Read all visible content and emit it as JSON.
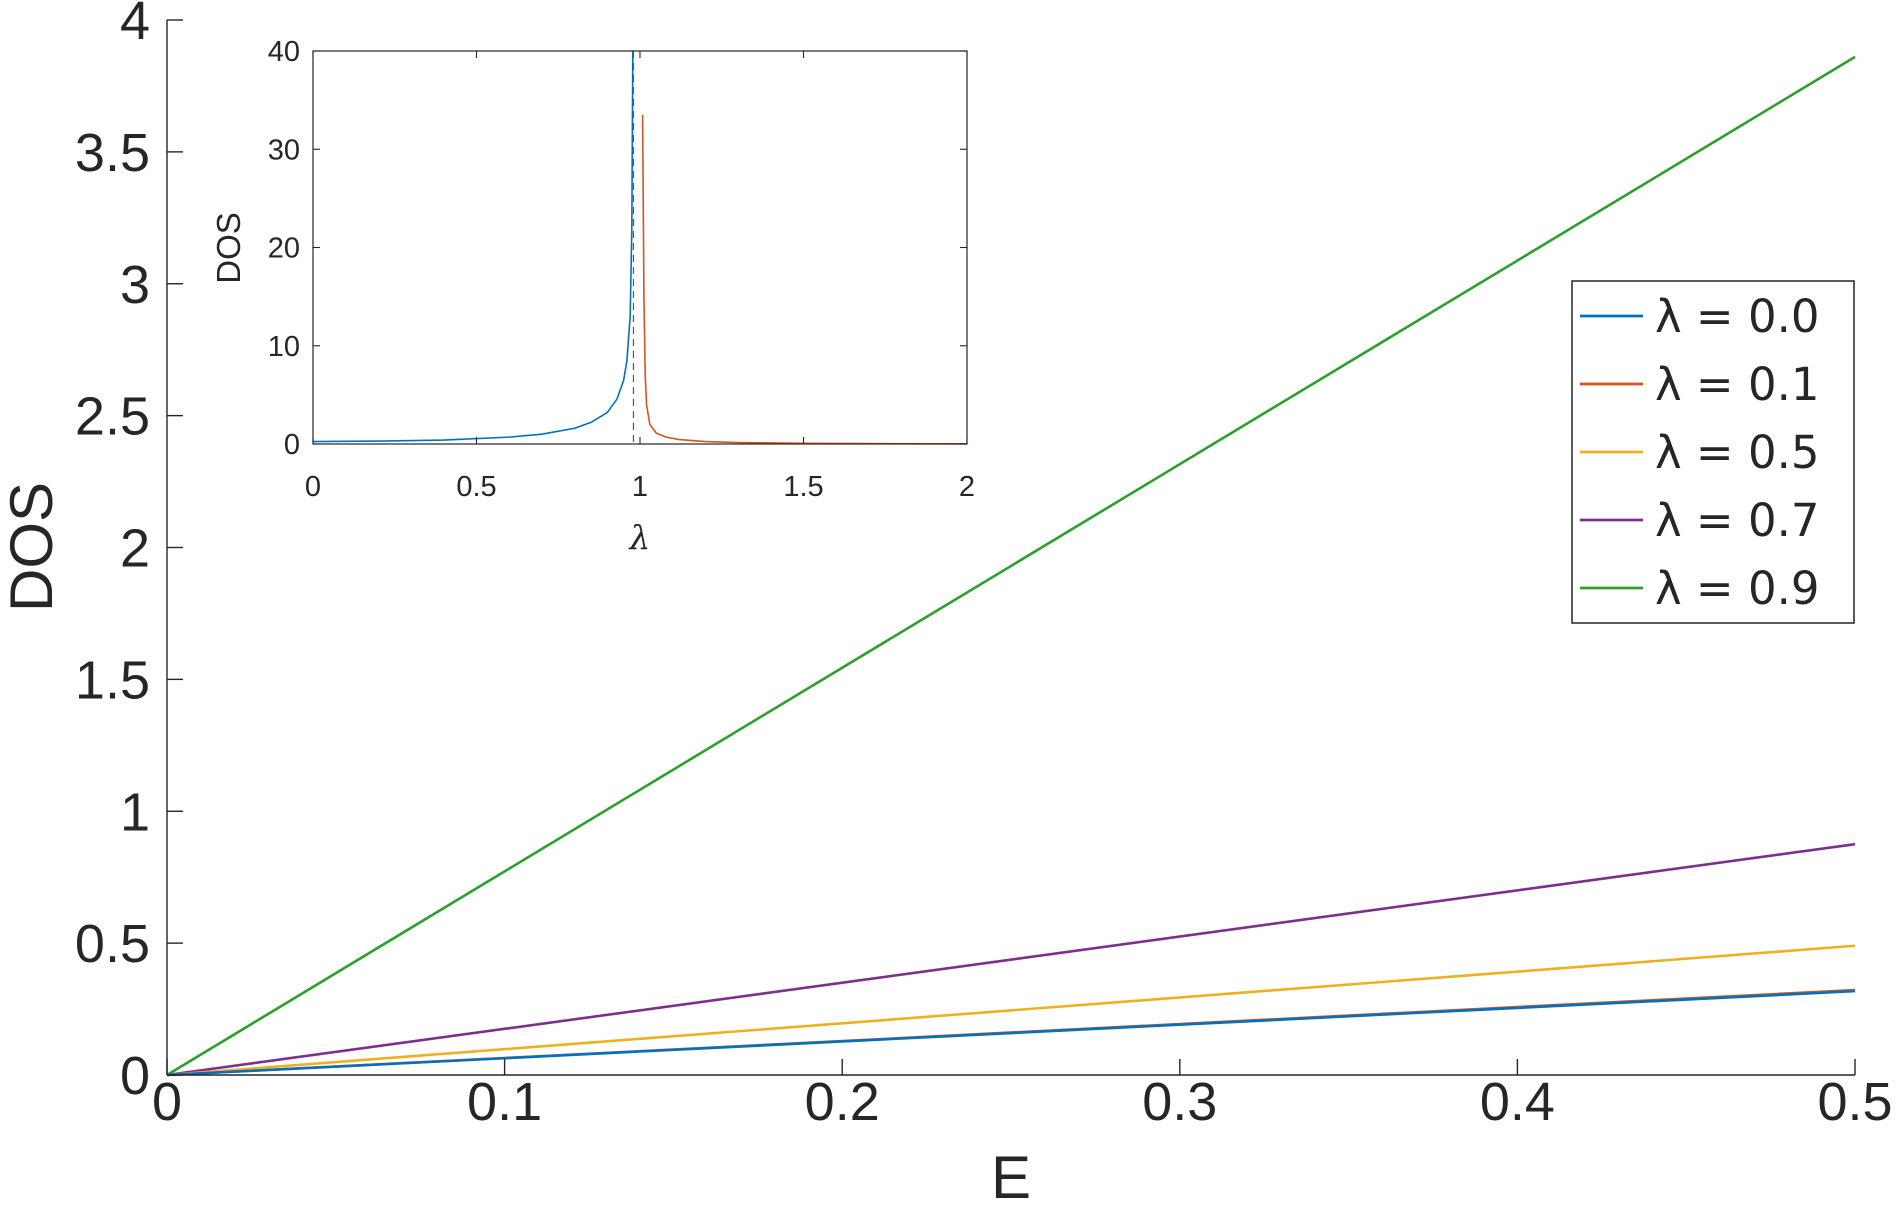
{
  "chart_data": [
    {
      "type": "line",
      "xlabel": "E",
      "ylabel": "DOS",
      "xlim": [
        0,
        0.5
      ],
      "ylim": [
        0,
        4
      ],
      "xticks": [
        "0",
        "0.1",
        "0.2",
        "0.3",
        "0.4",
        "0.5"
      ],
      "yticks": [
        "0",
        "0.5",
        "1",
        "1.5",
        "2",
        "2.5",
        "3",
        "3.5",
        "4"
      ],
      "grid": false,
      "legend_position": "right",
      "series": [
        {
          "name": "λ = 0.0",
          "color": "#0072BD",
          "x": [
            0,
            0.5
          ],
          "y": [
            0,
            0.318
          ]
        },
        {
          "name": "λ = 0.1",
          "color": "#D95319",
          "x": [
            0,
            0.5
          ],
          "y": [
            0,
            0.322
          ]
        },
        {
          "name": "λ = 0.5",
          "color": "#EDB120",
          "x": [
            0,
            0.5
          ],
          "y": [
            0,
            0.49
          ]
        },
        {
          "name": "λ = 0.7",
          "color": "#7E2F8E",
          "x": [
            0,
            0.5
          ],
          "y": [
            0,
            0.875
          ]
        },
        {
          "name": "λ = 0.9",
          "color": "#2CA02C",
          "x": [
            0,
            0.5
          ],
          "y": [
            0,
            3.86
          ]
        }
      ]
    },
    {
      "type": "line",
      "xlabel": "λ",
      "ylabel": "DOS",
      "xlim": [
        0,
        2
      ],
      "ylim": [
        0,
        40
      ],
      "xticks": [
        "0",
        "0.5",
        "1",
        "1.5",
        "2"
      ],
      "yticks": [
        "0",
        "10",
        "20",
        "30",
        "40"
      ],
      "grid": false,
      "reference_line_x": 0.98,
      "series": [
        {
          "color": "#0072BD",
          "x": [
            0,
            0.2,
            0.4,
            0.6,
            0.7,
            0.8,
            0.85,
            0.9,
            0.93,
            0.95,
            0.96,
            0.97,
            0.975,
            0.978
          ],
          "y": [
            0.25,
            0.3,
            0.4,
            0.7,
            1.0,
            1.6,
            2.2,
            3.2,
            4.6,
            6.5,
            8.5,
            13,
            22,
            40
          ]
        },
        {
          "color": "#D95319",
          "x": [
            1.008,
            1.012,
            1.016,
            1.02,
            1.03,
            1.05,
            1.08,
            1.12,
            1.2,
            1.3,
            1.5,
            1.7,
            2.0
          ],
          "y": [
            33.5,
            15,
            7,
            4,
            2,
            1.1,
            0.7,
            0.45,
            0.25,
            0.15,
            0.07,
            0.04,
            0.02
          ]
        }
      ]
    }
  ]
}
